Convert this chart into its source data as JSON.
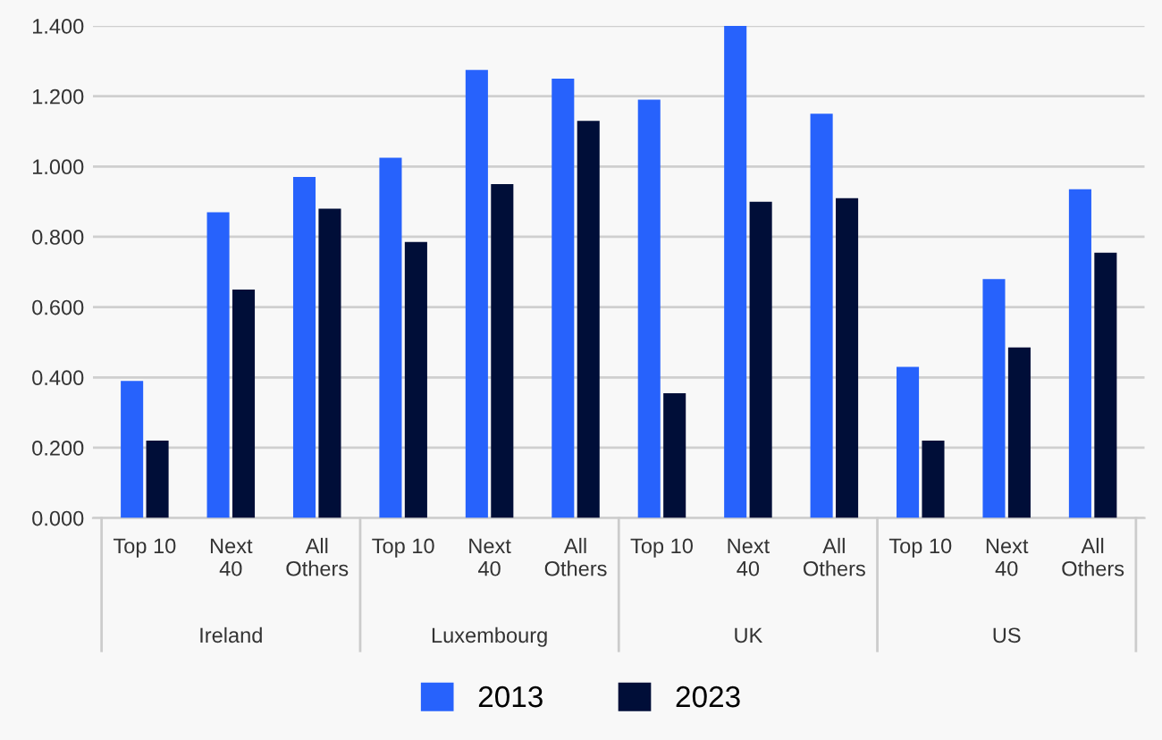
{
  "chart_data": {
    "type": "bar",
    "categories": [
      "Top 10",
      "Next\n40",
      "All\nOthers",
      "Top 10",
      "Next\n40",
      "All\nOthers",
      "Top 10",
      "Next\n40",
      "All\nOthers",
      "Top 10",
      "Next\n40",
      "All\nOthers"
    ],
    "series": [
      {
        "name": "2013",
        "color": "#2762fc",
        "values": [
          0.39,
          0.87,
          0.97,
          1.025,
          1.275,
          1.25,
          1.19,
          1.4,
          1.15,
          0.43,
          0.68,
          0.935
        ]
      },
      {
        "name": "2023",
        "color": "#000e38",
        "values": [
          0.22,
          0.65,
          0.88,
          0.785,
          0.95,
          1.13,
          0.355,
          0.9,
          0.91,
          0.22,
          0.485,
          0.755
        ]
      }
    ],
    "annotations": [
      "Ireland",
      "Luxembourg",
      "UK",
      "US"
    ],
    "ylim": [
      0,
      1.4
    ],
    "yticks": [
      {
        "value": 0,
        "label": "0.000"
      },
      {
        "value": 0.2,
        "label": "0.200"
      },
      {
        "value": 0.4,
        "label": "0.400"
      },
      {
        "value": 0.6,
        "label": "0.600"
      },
      {
        "value": 0.8,
        "label": "0.800"
      },
      {
        "value": 1.0,
        "label": "1.000"
      },
      {
        "value": 1.2,
        "label": "1.200"
      },
      {
        "value": 1.4,
        "label": "1.400"
      }
    ],
    "grid": "y",
    "legend": "bottom"
  }
}
